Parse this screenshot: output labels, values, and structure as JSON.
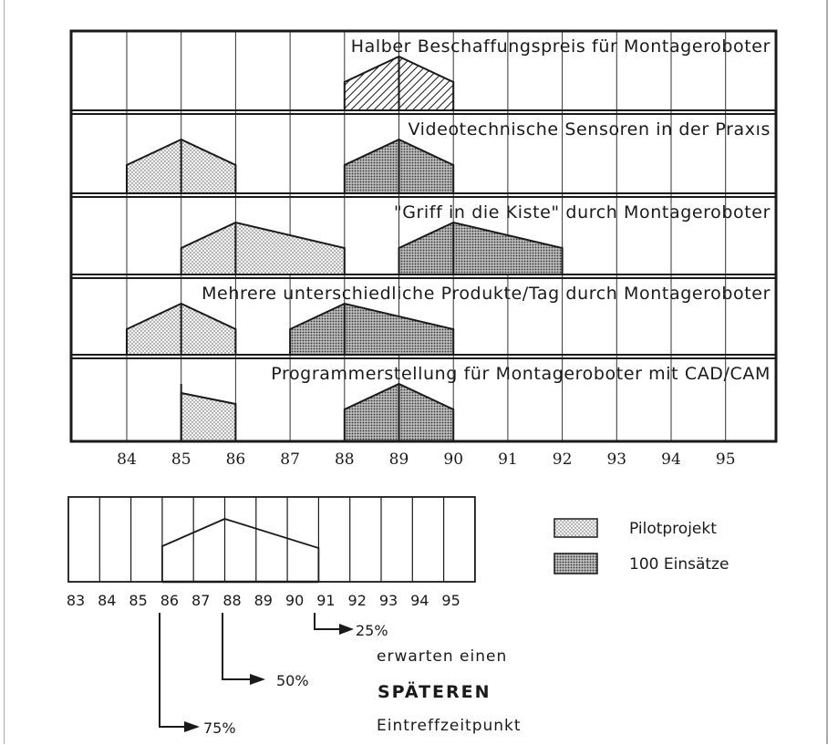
{
  "diagram": {
    "years": [
      "84",
      "85",
      "86",
      "87",
      "88",
      "89",
      "90",
      "91",
      "92",
      "93",
      "94",
      "95"
    ],
    "rows": [
      {
        "title": "Halber Beschaffungspreis für Montageroboter",
        "shapes": [
          {
            "kind": "hatch",
            "from": 88,
            "peak": 89,
            "to": 90
          }
        ]
      },
      {
        "title": "Videotechnische Sensoren in der Praxıs",
        "shapes": [
          {
            "kind": "pilot",
            "from": 84,
            "peak": 85,
            "to": 86
          },
          {
            "kind": "einsatz",
            "from": 88,
            "peak": 89,
            "to": 90
          }
        ]
      },
      {
        "title": "\"Griff in die Kiste\" durch Montageroboter",
        "shapes": [
          {
            "kind": "pilot",
            "from": 85,
            "peak": 86,
            "to": 88
          },
          {
            "kind": "einsatz",
            "from": 89,
            "peak": 90,
            "to": 92
          }
        ]
      },
      {
        "title": "Mehrere unterschiedliche Produkte/Tag durch Montageroboter",
        "shapes": [
          {
            "kind": "pilot",
            "from": 84,
            "peak": 85,
            "to": 86
          },
          {
            "kind": "einsatz",
            "from": 87,
            "peak": 88,
            "to": 90
          }
        ]
      },
      {
        "title": "Programmerstellung für Montageroboter mit CAD/CAM",
        "shapes": [
          {
            "kind": "pilot-half",
            "from": 85,
            "peak": 85,
            "to": 86
          },
          {
            "kind": "einsatz",
            "from": 88,
            "peak": 89,
            "to": 90
          }
        ]
      }
    ]
  },
  "small_diagram": {
    "labels": [
      "83",
      "84",
      "85",
      "86",
      "87",
      "88",
      "89",
      "90",
      "91",
      "92",
      "93",
      "94",
      "95"
    ]
  },
  "legend": {
    "pilot": "Pilotprojekt",
    "einsatz": "100 Einsätze"
  },
  "notes": {
    "p25": "25%",
    "p50": "50%",
    "p75": "75%",
    "line1": "erwarten einen",
    "line2": "SPÄTEREN",
    "line3": "Eintreffzeitpunkt"
  },
  "colors": {
    "ink": "#1a1a1a",
    "background": "#ffffff"
  }
}
